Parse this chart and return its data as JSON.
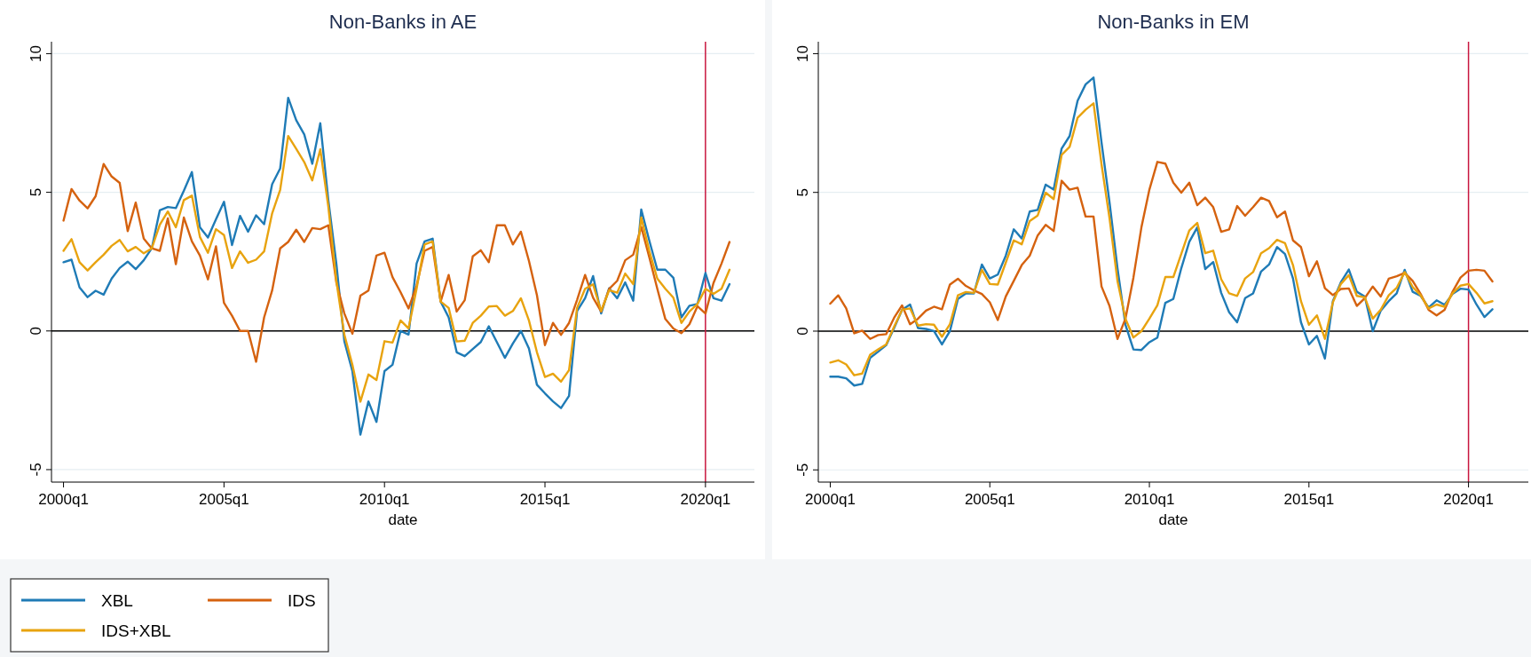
{
  "chart_data": [
    {
      "type": "line",
      "title": "Non-Banks in AE",
      "xlabel": "date",
      "ylim": [
        -5.45,
        10.43
      ],
      "yticks": [
        -5,
        0,
        5,
        10
      ],
      "grid": "y",
      "legend": "bottom",
      "ref_lines": [
        {
          "axis": "y",
          "value": 0,
          "color": "#000000"
        },
        {
          "axis": "x",
          "value": "2020q1",
          "color": "#c8163e"
        }
      ],
      "categories": [
        "2000q1",
        null,
        null,
        null,
        null,
        null,
        null,
        null,
        null,
        null,
        null,
        null,
        null,
        null,
        null,
        null,
        null,
        null,
        null,
        null,
        "2005q1",
        null,
        null,
        null,
        null,
        null,
        null,
        null,
        null,
        null,
        null,
        null,
        null,
        null,
        null,
        null,
        null,
        null,
        null,
        null,
        "2010q1",
        null,
        null,
        null,
        null,
        null,
        null,
        null,
        null,
        null,
        null,
        null,
        null,
        null,
        null,
        null,
        null,
        null,
        null,
        null,
        "2015q1",
        null,
        null,
        null,
        null,
        null,
        null,
        null,
        null,
        null,
        null,
        null,
        null,
        null,
        null,
        null,
        null,
        null,
        null,
        null,
        "2020q1",
        null,
        null,
        null
      ],
      "series": [
        {
          "name": "XBL",
          "color": "#1f7bb6",
          "values": [
            2.48,
            2.57,
            1.57,
            1.22,
            1.45,
            1.31,
            1.89,
            2.27,
            2.5,
            2.23,
            2.55,
            2.98,
            4.35,
            4.47,
            4.43,
            5.06,
            5.73,
            3.74,
            3.37,
            4.03,
            4.66,
            3.1,
            4.15,
            3.58,
            4.17,
            3.85,
            5.29,
            5.86,
            8.41,
            7.6,
            7.09,
            6.03,
            7.49,
            4.72,
            2.43,
            -0.37,
            -1.45,
            -3.74,
            -2.54,
            -3.28,
            -1.45,
            -1.22,
            0,
            -0.13,
            2.43,
            3.23,
            3.33,
            1.06,
            0.49,
            -0.77,
            -0.91,
            -0.65,
            -0.4,
            0.17,
            -0.4,
            -0.97,
            -0.45,
            0,
            -0.63,
            -1.94,
            -2.25,
            -2.54,
            -2.78,
            -2.34,
            0.72,
            1.18,
            1.98,
            0.63,
            1.54,
            1.18,
            1.75,
            1.09,
            4.38,
            3.26,
            2.21,
            2.21,
            1.92,
            0.49,
            0.91,
            0.97,
            2.09,
            1.18,
            1.09,
            1.69
          ]
        },
        {
          "name": "IDS",
          "color": "#d5620f",
          "values": [
            3.98,
            5.12,
            4.7,
            4.42,
            4.86,
            6.02,
            5.57,
            5.34,
            3.6,
            4.63,
            3.33,
            2.98,
            2.89,
            4.06,
            2.41,
            4.09,
            3.23,
            2.72,
            1.86,
            3.05,
            1.01,
            0.55,
            0,
            0,
            -1.11,
            0.49,
            1.46,
            2.98,
            3.21,
            3.65,
            3.21,
            3.71,
            3.67,
            3.81,
            1.75,
            0.63,
            -0.1,
            1.27,
            1.46,
            2.72,
            2.82,
            1.94,
            1.4,
            0.81,
            1.63,
            2.89,
            3.03,
            1.06,
            2.02,
            0.7,
            1.11,
            2.69,
            2.91,
            2.48,
            3.81,
            3.81,
            3.12,
            3.58,
            2.53,
            1.29,
            -0.51,
            0.29,
            -0.14,
            0.29,
            1.12,
            2.02,
            1.2,
            0.7,
            1.52,
            1.81,
            2.55,
            2.75,
            3.75,
            2.66,
            1.52,
            0.43,
            0.09,
            -0.08,
            0.24,
            0.89,
            0.63,
            1.73,
            2.43,
            3.21
          ]
        },
        {
          "name": "IDS+XBL",
          "color": "#e8a30f",
          "values": [
            2.89,
            3.31,
            2.48,
            2.18,
            2.48,
            2.75,
            3.07,
            3.28,
            2.87,
            3.03,
            2.8,
            2.98,
            3.83,
            4.31,
            3.74,
            4.72,
            4.88,
            3.39,
            2.82,
            3.67,
            3.46,
            2.27,
            2.87,
            2.46,
            2.57,
            2.87,
            4.24,
            5.09,
            7.03,
            6.57,
            6.09,
            5.43,
            6.55,
            4.49,
            1.81,
            -0.14,
            -1.22,
            -2.55,
            -1.57,
            -1.77,
            -0.37,
            -0.42,
            0.38,
            0.09,
            1.52,
            3.12,
            3.23,
            1.06,
            0.83,
            -0.38,
            -0.35,
            0.29,
            0.55,
            0.88,
            0.9,
            0.55,
            0.72,
            1.18,
            0.38,
            -0.77,
            -1.66,
            -1.54,
            -1.83,
            -1.41,
            0.83,
            1.52,
            1.68,
            0.72,
            1.47,
            1.38,
            2.07,
            1.69,
            4.09,
            2.89,
            1.89,
            1.52,
            1.2,
            0.29,
            0.7,
            0.97,
            1.52,
            1.34,
            1.52,
            2.21
          ]
        }
      ]
    },
    {
      "type": "line",
      "title": "Non-Banks in EM",
      "xlabel": "date",
      "ylim": [
        -5.44,
        10.43
      ],
      "yticks": [
        -5,
        0,
        5,
        10
      ],
      "grid": "y",
      "ref_lines": [
        {
          "axis": "y",
          "value": 0,
          "color": "#000000"
        },
        {
          "axis": "x",
          "value": "2020q1",
          "color": "#c8163e"
        }
      ],
      "categories": [
        "2000q1",
        null,
        null,
        null,
        null,
        null,
        null,
        null,
        null,
        null,
        null,
        null,
        null,
        null,
        null,
        null,
        null,
        null,
        null,
        null,
        "2005q1",
        null,
        null,
        null,
        null,
        null,
        null,
        null,
        null,
        null,
        null,
        null,
        null,
        null,
        null,
        null,
        null,
        null,
        null,
        null,
        "2010q1",
        null,
        null,
        null,
        null,
        null,
        null,
        null,
        null,
        null,
        null,
        null,
        null,
        null,
        null,
        null,
        null,
        null,
        null,
        null,
        "2015q1",
        null,
        null,
        null,
        null,
        null,
        null,
        null,
        null,
        null,
        null,
        null,
        null,
        null,
        null,
        null,
        null,
        null,
        null,
        null,
        "2020q1",
        null,
        null,
        null
      ],
      "series": [
        {
          "color": "#1f7bb6",
          "values": [
            -1.64,
            -1.64,
            -1.7,
            -1.96,
            -1.9,
            -0.96,
            -0.74,
            -0.51,
            0.11,
            0.77,
            0.96,
            0.11,
            0.08,
            0,
            -0.48,
            0,
            1.16,
            1.36,
            1.36,
            2.4,
            1.9,
            2.04,
            2.72,
            3.67,
            3.34,
            4.31,
            4.37,
            5.28,
            5.1,
            6.58,
            7.03,
            8.3,
            8.89,
            9.14,
            6.8,
            4.65,
            2.27,
            0.23,
            -0.66,
            -0.68,
            -0.4,
            -0.23,
            1.02,
            1.16,
            2.27,
            3.22,
            3.74,
            2.24,
            2.49,
            1.38,
            0.68,
            0.32,
            1.19,
            1.36,
            2.15,
            2.4,
            3.03,
            2.78,
            1.9,
            0.32,
            -0.48,
            -0.17,
            -0.99,
            1.08,
            1.76,
            2.22,
            1.42,
            1.25,
            0,
            0.74,
            1.08,
            1.36,
            2.21,
            1.42,
            1.27,
            0.85,
            1.11,
            0.95,
            1.34,
            1.53,
            1.5,
            0.96,
            0.51,
            0.79
          ]
        },
        {
          "color": "#d5620f",
          "values": [
            0.99,
            1.29,
            0.82,
            -0.08,
            0.02,
            -0.28,
            -0.14,
            -0.11,
            0.48,
            0.93,
            0.25,
            0.45,
            0.74,
            0.88,
            0.79,
            1.68,
            1.89,
            1.63,
            1.47,
            1.34,
            1.04,
            0.4,
            1.25,
            1.81,
            2.38,
            2.72,
            3.45,
            3.83,
            3.61,
            5.42,
            5.1,
            5.17,
            4.13,
            4.13,
            1.61,
            0.91,
            -0.28,
            0.45,
            1.93,
            3.74,
            5.1,
            6.1,
            6.04,
            5.35,
            4.99,
            5.35,
            4.54,
            4.81,
            4.47,
            3.58,
            3.67,
            4.51,
            4.16,
            4.47,
            4.81,
            4.69,
            4.1,
            4.31,
            3.27,
            3.03,
            1.98,
            2.52,
            1.55,
            1.3,
            1.52,
            1.54,
            0.91,
            1.19,
            1.61,
            1.25,
            1.89,
            1.98,
            2.1,
            1.81,
            1.34,
            0.77,
            0.57,
            0.77,
            1.42,
            1.93,
            2.18,
            2.21,
            2.18,
            1.79
          ]
        },
        {
          "color": "#e8a30f",
          "values": [
            -1.13,
            -1.05,
            -1.2,
            -1.59,
            -1.53,
            -0.85,
            -0.66,
            -0.48,
            0.16,
            0.77,
            0.82,
            0.2,
            0.25,
            0.23,
            -0.2,
            0.25,
            1.29,
            1.41,
            1.38,
            2.21,
            1.7,
            1.68,
            2.47,
            3.27,
            3.13,
            3.97,
            4.17,
            4.99,
            4.76,
            6.35,
            6.64,
            7.69,
            7.98,
            8.21,
            6.01,
            4.08,
            1.81,
            0.45,
            -0.23,
            0,
            0.45,
            0.93,
            1.95,
            1.95,
            2.79,
            3.63,
            3.9,
            2.81,
            2.9,
            1.87,
            1.36,
            1.27,
            1.9,
            2.13,
            2.81,
            2.99,
            3.29,
            3.17,
            2.38,
            1.08,
            0.23,
            0.57,
            -0.28,
            1.04,
            1.7,
            2.02,
            1.27,
            1.22,
            0.45,
            0.77,
            1.29,
            1.56,
            2.13,
            1.59,
            1.29,
            0.82,
            0.96,
            0.88,
            1.36,
            1.64,
            1.7,
            1.38,
            1,
            1.08
          ]
        }
      ]
    }
  ]
}
